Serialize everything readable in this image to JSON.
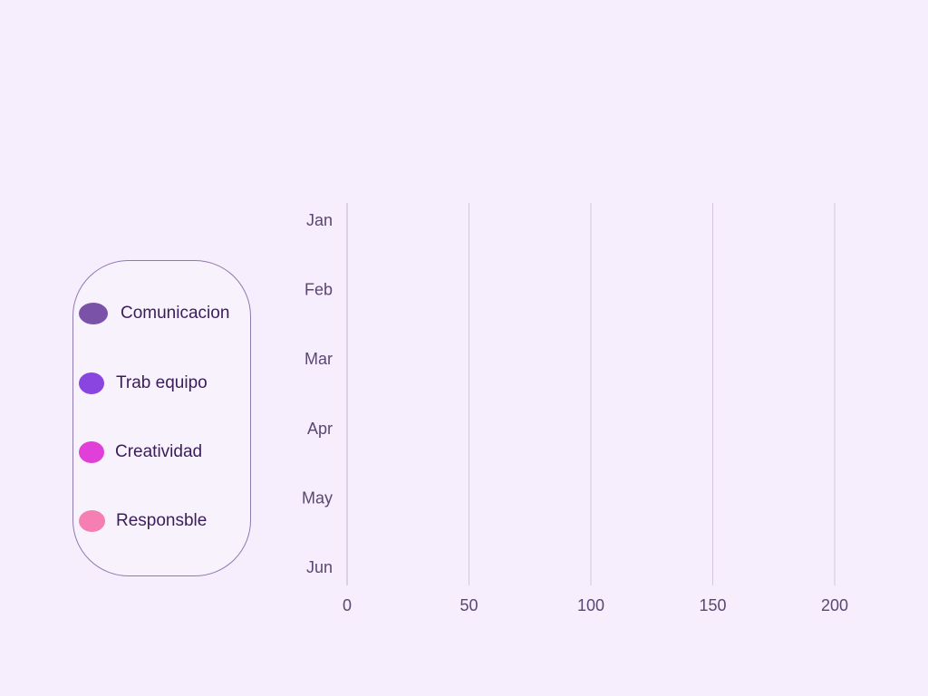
{
  "chart_data": {
    "type": "bar",
    "orientation": "horizontal",
    "categories": [
      "Jan",
      "Feb",
      "Mar",
      "Apr",
      "May",
      "Jun"
    ],
    "series": [
      {
        "name": "Comunicacion",
        "color": "#7a52a8",
        "values": [
          0,
          0,
          0,
          0,
          0,
          0
        ]
      },
      {
        "name": "Trab equipo",
        "color": "#8a45e0",
        "values": [
          0,
          0,
          0,
          0,
          0,
          0
        ]
      },
      {
        "name": "Creatividad",
        "color": "#e040d8",
        "values": [
          0,
          0,
          0,
          0,
          0,
          0
        ]
      },
      {
        "name": "Responsble",
        "color": "#f57fb3",
        "values": [
          0,
          0,
          0,
          0,
          0,
          0
        ]
      }
    ],
    "xlim": [
      0,
      200
    ],
    "xticks": [
      "0",
      "50",
      "100",
      "150",
      "200"
    ],
    "grid": true,
    "legend_position": "left",
    "title": "",
    "xlabel": "",
    "ylabel": ""
  },
  "colors": {
    "background": "#f6eefc",
    "grid": "#d3c6e0",
    "text": "#3a1d5a"
  }
}
